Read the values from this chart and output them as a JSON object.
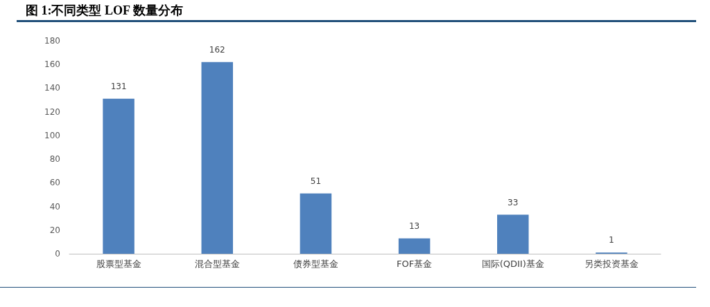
{
  "chart_data": {
    "type": "bar",
    "title": "图 1:不同类型 LOF 数量分布",
    "categories": [
      "股票型基金",
      "混合型基金",
      "债券型基金",
      "FOF基金",
      "国际(QDII)基金",
      "另类投资基金"
    ],
    "values": [
      131,
      162,
      51,
      13,
      33,
      1
    ],
    "color": "#4f81bd",
    "ylim": [
      0,
      180
    ],
    "yticks": [
      0,
      20,
      40,
      60,
      80,
      100,
      120,
      140,
      160,
      180
    ],
    "data_labels": true
  }
}
